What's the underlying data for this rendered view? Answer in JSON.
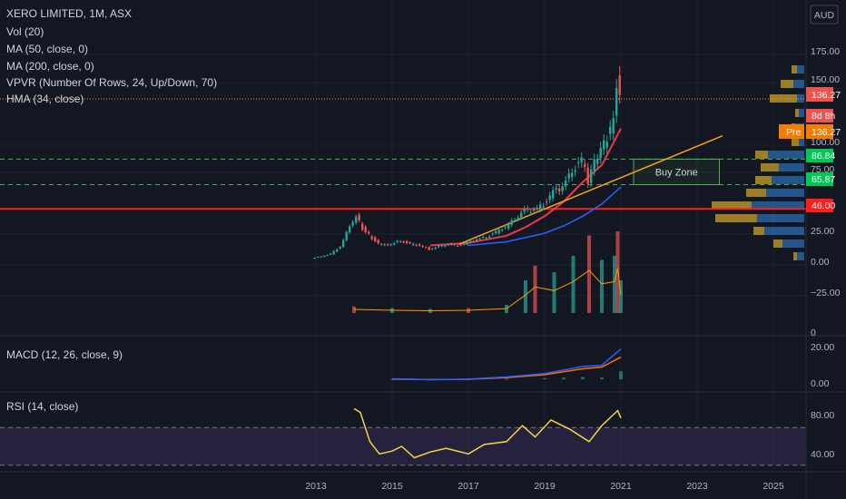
{
  "header": {
    "symbol_line": "XERO LIMITED, 1M, ASX",
    "currency": "AUD",
    "indicators": [
      "Vol (20)",
      "MA (50, close, 0)",
      "MA (200, close, 0)",
      "VPVR (Number Of Rows, 24, Up/Down, 70)",
      "HMA (34, close)"
    ]
  },
  "panes": {
    "macd_title": "MACD (12, 26, close, 9)",
    "rsi_title": "RSI (14, close)"
  },
  "annotations": {
    "buy_zone": "Buy Zone"
  },
  "price_axis": {
    "ticks": [
      "175.00",
      "150.00",
      "100.00",
      "75.00",
      "25.00",
      "0.00",
      "−25.00"
    ],
    "volume_zero": "0",
    "macd_ticks": [
      "20.00",
      "0.00"
    ],
    "rsi_ticks": [
      "80.00",
      "40.00"
    ]
  },
  "price_labels": {
    "last": "136.27",
    "countdown": "8d 8h",
    "pre_tag": "Pre",
    "pre_value": "136.27",
    "upper_zone": "86.84",
    "lower_zone": "65.87",
    "support": "46.00"
  },
  "time_axis": [
    "2013",
    "2015",
    "2017",
    "2019",
    "2021",
    "2023",
    "2025"
  ],
  "colors": {
    "background": "#131722",
    "up": "#26a69a",
    "down": "#ef5350",
    "ma50": "#f23645",
    "ma200": "#2962ff",
    "trendline": "#f7a21b",
    "zone": "#4caf50",
    "support_line": "#ff1e1e",
    "vpvr_up": "#2b6cb0",
    "vpvr_down": "#c9a227",
    "rsi_line": "#f5d547",
    "macd_line": "#2962ff",
    "signal_line": "#ff6d00"
  },
  "chart_data": {
    "type": "candlestick",
    "title": "XERO LIMITED, 1M, ASX",
    "interval": "1M",
    "x_range": [
      "2012-01",
      "2025-12"
    ],
    "price_range": [
      -25,
      185
    ],
    "horizontal_levels": [
      {
        "value": 86.84,
        "style": "dashed",
        "color": "#4caf50"
      },
      {
        "value": 65.87,
        "style": "dashed",
        "color": "#4caf50"
      },
      {
        "value": 46.0,
        "style": "solid",
        "color": "#ff1e1e"
      },
      {
        "value": 136.27,
        "style": "dotted",
        "color": "#f7a21b"
      }
    ],
    "monthly_close": [
      {
        "x": "2012-12",
        "y": 5.5
      },
      {
        "x": "2013-03",
        "y": 7
      },
      {
        "x": "2013-06",
        "y": 9
      },
      {
        "x": "2013-09",
        "y": 15
      },
      {
        "x": "2013-12",
        "y": 32
      },
      {
        "x": "2014-02",
        "y": 40
      },
      {
        "x": "2014-04",
        "y": 30
      },
      {
        "x": "2014-07",
        "y": 22
      },
      {
        "x": "2014-10",
        "y": 16
      },
      {
        "x": "2015-01",
        "y": 17
      },
      {
        "x": "2015-04",
        "y": 20
      },
      {
        "x": "2015-07",
        "y": 17
      },
      {
        "x": "2015-10",
        "y": 16
      },
      {
        "x": "2016-01",
        "y": 13
      },
      {
        "x": "2016-04",
        "y": 15
      },
      {
        "x": "2016-07",
        "y": 17
      },
      {
        "x": "2016-10",
        "y": 16
      },
      {
        "x": "2017-01",
        "y": 18
      },
      {
        "x": "2017-04",
        "y": 21
      },
      {
        "x": "2017-07",
        "y": 23
      },
      {
        "x": "2017-10",
        "y": 27
      },
      {
        "x": "2018-01",
        "y": 31
      },
      {
        "x": "2018-04",
        "y": 38
      },
      {
        "x": "2018-07",
        "y": 45
      },
      {
        "x": "2018-10",
        "y": 45
      },
      {
        "x": "2019-01",
        "y": 50
      },
      {
        "x": "2019-04",
        "y": 60
      },
      {
        "x": "2019-07",
        "y": 64
      },
      {
        "x": "2019-10",
        "y": 78
      },
      {
        "x": "2020-01",
        "y": 86
      },
      {
        "x": "2020-03",
        "y": 70
      },
      {
        "x": "2020-05",
        "y": 85
      },
      {
        "x": "2020-07",
        "y": 95
      },
      {
        "x": "2020-09",
        "y": 105
      },
      {
        "x": "2020-11",
        "y": 118
      },
      {
        "x": "2020-12",
        "y": 150
      },
      {
        "x": "2021-01",
        "y": 136.27
      }
    ],
    "ma50": [
      {
        "x": "2016-01",
        "y": 16
      },
      {
        "x": "2017-01",
        "y": 18
      },
      {
        "x": "2018-01",
        "y": 24
      },
      {
        "x": "2018-07",
        "y": 31
      },
      {
        "x": "2019-01",
        "y": 40
      },
      {
        "x": "2019-07",
        "y": 52
      },
      {
        "x": "2020-01",
        "y": 68
      },
      {
        "x": "2020-07",
        "y": 82
      },
      {
        "x": "2021-01",
        "y": 112
      }
    ],
    "ma200": [
      {
        "x": "2017-01",
        "y": 16
      },
      {
        "x": "2018-01",
        "y": 19
      },
      {
        "x": "2019-01",
        "y": 26
      },
      {
        "x": "2019-07",
        "y": 32
      },
      {
        "x": "2020-01",
        "y": 40
      },
      {
        "x": "2020-07",
        "y": 50
      },
      {
        "x": "2021-01",
        "y": 64
      }
    ],
    "trendline": [
      {
        "x": "2016-10",
        "y": 17
      },
      {
        "x": "2023-09",
        "y": 106
      }
    ],
    "buy_zone": {
      "x0": "2021-05",
      "x1": "2023-08",
      "y0": 65.87,
      "y1": 86.84
    },
    "volume_relative": [
      {
        "x": "2014-01",
        "v": 0.08
      },
      {
        "x": "2015-01",
        "v": 0.06
      },
      {
        "x": "2016-01",
        "v": 0.05
      },
      {
        "x": "2017-01",
        "v": 0.06
      },
      {
        "x": "2018-01",
        "v": 0.1
      },
      {
        "x": "2018-07",
        "v": 0.4
      },
      {
        "x": "2018-10",
        "v": 0.58
      },
      {
        "x": "2019-04",
        "v": 0.5
      },
      {
        "x": "2019-10",
        "v": 0.7
      },
      {
        "x": "2020-03",
        "v": 0.95
      },
      {
        "x": "2020-07",
        "v": 0.65
      },
      {
        "x": "2020-11",
        "v": 0.7
      },
      {
        "x": "2020-12",
        "v": 1.0
      },
      {
        "x": "2021-01",
        "v": 0.4
      }
    ],
    "macd_range": [
      -3,
      28
    ],
    "macd": [
      {
        "x": "2015-01",
        "y": 0.5
      },
      {
        "x": "2016-01",
        "y": -0.3
      },
      {
        "x": "2017-01",
        "y": 0.2
      },
      {
        "x": "2018-01",
        "y": 2
      },
      {
        "x": "2019-01",
        "y": 5
      },
      {
        "x": "2019-07",
        "y": 8
      },
      {
        "x": "2020-01",
        "y": 11
      },
      {
        "x": "2020-07",
        "y": 12
      },
      {
        "x": "2021-01",
        "y": 26
      }
    ],
    "macd_signal": [
      {
        "x": "2015-01",
        "y": 0.2
      },
      {
        "x": "2016-01",
        "y": -0.2
      },
      {
        "x": "2017-01",
        "y": 0.1
      },
      {
        "x": "2018-01",
        "y": 1.5
      },
      {
        "x": "2019-01",
        "y": 4
      },
      {
        "x": "2019-07",
        "y": 6.5
      },
      {
        "x": "2020-01",
        "y": 9
      },
      {
        "x": "2020-07",
        "y": 10.5
      },
      {
        "x": "2021-01",
        "y": 19
      }
    ],
    "rsi_range": [
      25,
      100
    ],
    "rsi_levels": [
      70,
      30
    ],
    "rsi": [
      {
        "x": "2014-01",
        "y": 90
      },
      {
        "x": "2014-03",
        "y": 86
      },
      {
        "x": "2014-06",
        "y": 55
      },
      {
        "x": "2014-09",
        "y": 42
      },
      {
        "x": "2015-01",
        "y": 45
      },
      {
        "x": "2015-04",
        "y": 50
      },
      {
        "x": "2015-08",
        "y": 38
      },
      {
        "x": "2016-01",
        "y": 44
      },
      {
        "x": "2016-06",
        "y": 48
      },
      {
        "x": "2017-01",
        "y": 42
      },
      {
        "x": "2017-06",
        "y": 52
      },
      {
        "x": "2018-01",
        "y": 55
      },
      {
        "x": "2018-06",
        "y": 72
      },
      {
        "x": "2018-10",
        "y": 60
      },
      {
        "x": "2019-03",
        "y": 78
      },
      {
        "x": "2019-09",
        "y": 68
      },
      {
        "x": "2020-03",
        "y": 55
      },
      {
        "x": "2020-07",
        "y": 72
      },
      {
        "x": "2020-12",
        "y": 88
      },
      {
        "x": "2021-01",
        "y": 80
      }
    ]
  }
}
